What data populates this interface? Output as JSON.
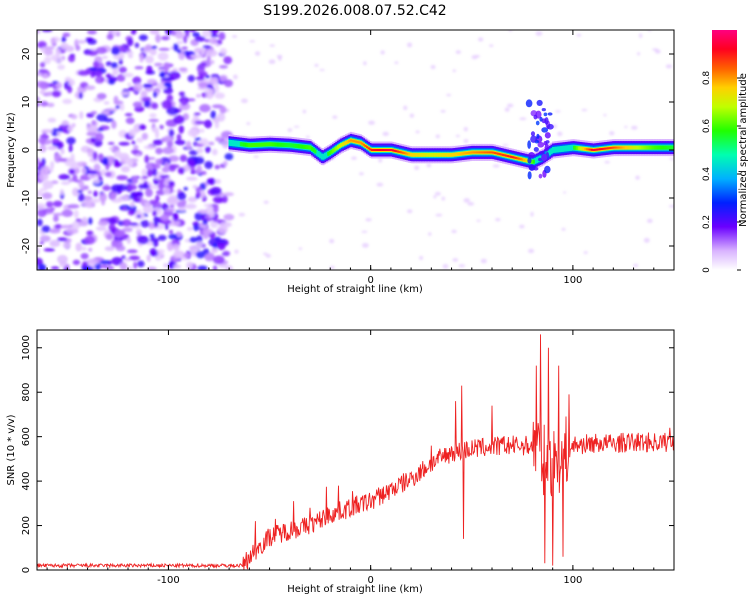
{
  "title": "S199.2026.008.07.52.C42",
  "chart_data": [
    {
      "type": "heatmap",
      "xlabel": "Height of straight line (km)",
      "ylabel": "Frequency (Hz)",
      "xlim": [
        -165,
        150
      ],
      "ylim": [
        -25,
        25
      ],
      "xticks": [
        -100,
        0,
        100
      ],
      "yticks": [
        -20,
        -10,
        0,
        10,
        20
      ],
      "colorbar": {
        "label": "Normalized spectral amplitude",
        "range": [
          0,
          1
        ],
        "ticks": [
          0,
          0.2,
          0.4,
          0.6,
          0.8
        ]
      },
      "noise_region_x": [
        -165,
        -70
      ],
      "ridge": {
        "description": "dominant frequency ridge",
        "x": [
          -70,
          -60,
          -50,
          -40,
          -30,
          -24,
          -20,
          -15,
          -10,
          -5,
          0,
          10,
          20,
          30,
          40,
          50,
          60,
          70,
          75,
          80,
          85,
          90,
          100,
          110,
          120,
          130,
          140,
          150
        ],
        "y": [
          1.5,
          1.0,
          1.2,
          1.0,
          0.5,
          -1.5,
          -0.5,
          1.0,
          2.0,
          1.5,
          0.0,
          0.0,
          -1.0,
          -1.0,
          -1.0,
          -0.5,
          -0.5,
          -1.5,
          -2.0,
          -2.5,
          -1.5,
          0.0,
          0.5,
          0.0,
          0.5,
          0.5,
          0.5,
          0.5
        ],
        "amplitude": [
          0.5,
          0.6,
          0.6,
          0.55,
          0.6,
          0.5,
          0.6,
          0.7,
          0.8,
          0.8,
          0.9,
          0.95,
          0.75,
          0.7,
          0.75,
          0.8,
          0.85,
          0.9,
          0.8,
          0.6,
          0.35,
          0.5,
          0.55,
          0.95,
          0.85,
          0.7,
          0.6,
          0.55
        ]
      }
    },
    {
      "type": "line",
      "xlabel": "Height of straight line (km)",
      "ylabel": "SNR (10 * v/v)",
      "xlim": [
        -165,
        150
      ],
      "ylim": [
        0,
        1080
      ],
      "xticks": [
        -100,
        0,
        100
      ],
      "yticks": [
        0,
        200,
        400,
        600,
        800,
        1000
      ],
      "series": [
        {
          "name": "SNR",
          "color": "#ee2222",
          "envelope_x": [
            -165,
            -63,
            -60,
            -50,
            -40,
            -30,
            -20,
            -10,
            0,
            10,
            20,
            30,
            40,
            50,
            60,
            70,
            80,
            83,
            85,
            88,
            90,
            95,
            100,
            110,
            120,
            130,
            140,
            150
          ],
          "envelope_y": [
            20,
            20,
            60,
            150,
            180,
            200,
            250,
            280,
            310,
            360,
            410,
            480,
            530,
            545,
            555,
            560,
            560,
            560,
            500,
            480,
            470,
            520,
            560,
            570,
            570,
            575,
            575,
            575
          ],
          "spikes": [
            {
              "x": -57,
              "y": 220
            },
            {
              "x": -47,
              "y": 230
            },
            {
              "x": -38,
              "y": 310
            },
            {
              "x": -30,
              "y": 280
            },
            {
              "x": -22,
              "y": 375
            },
            {
              "x": -16,
              "y": 380
            },
            {
              "x": -9,
              "y": 355
            },
            {
              "x": 30,
              "y": 560
            },
            {
              "x": 42,
              "y": 760
            },
            {
              "x": 45,
              "y": 830
            },
            {
              "x": 46,
              "y": 140
            },
            {
              "x": 60,
              "y": 740
            },
            {
              "x": 66,
              "y": 600
            },
            {
              "x": 82,
              "y": 920
            },
            {
              "x": 84,
              "y": 1060
            },
            {
              "x": 86,
              "y": 30
            },
            {
              "x": 88,
              "y": 1000
            },
            {
              "x": 90,
              "y": 20
            },
            {
              "x": 93,
              "y": 920
            },
            {
              "x": 95,
              "y": 60
            },
            {
              "x": 98,
              "y": 790
            },
            {
              "x": 148,
              "y": 640
            }
          ]
        }
      ]
    }
  ]
}
